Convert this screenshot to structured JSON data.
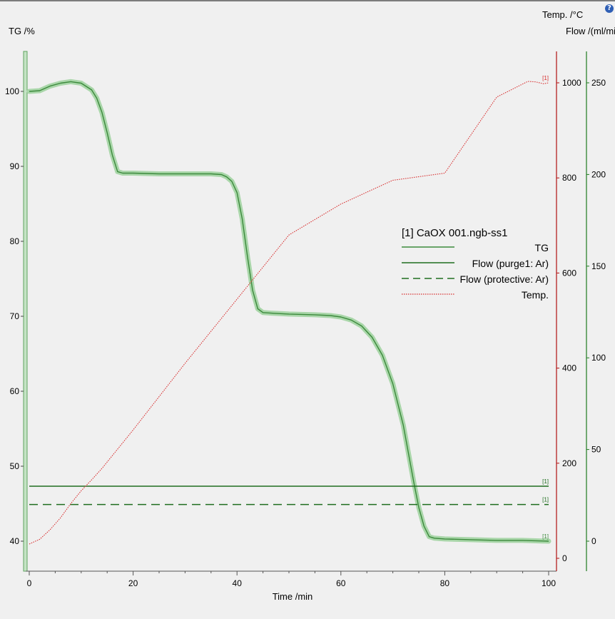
{
  "chart_data": {
    "type": "line",
    "title": "",
    "xlabel": "Time /min",
    "xlim": [
      0,
      101
    ],
    "x_ticks": [
      0,
      20,
      40,
      60,
      80,
      100
    ],
    "axes": {
      "tg": {
        "label": "TG /%",
        "lim": [
          36,
          106
        ],
        "ticks": [
          40,
          50,
          60,
          70,
          80,
          90,
          100
        ],
        "color": "#6aaa6a"
      },
      "temp": {
        "label": "Temp. /°C",
        "lim": [
          -20,
          1050
        ],
        "ticks": [
          0,
          200,
          400,
          600,
          800,
          1000
        ],
        "color": "#b01010"
      },
      "flow": {
        "label": "Flow /(ml/min)",
        "lim": [
          -15,
          265
        ],
        "ticks": [
          0,
          50,
          100,
          150,
          200,
          250
        ],
        "color": "#1f7a1f"
      }
    },
    "legend": {
      "header": "[1]  CaOX 001.ngb-ss1",
      "placement": "center-right",
      "entries": [
        "TG",
        "Flow (purge1: Ar)",
        "Flow (protective: Ar)",
        "Temp."
      ]
    },
    "series_tag": "[1]",
    "series": [
      {
        "name": "TG",
        "axis": "tg",
        "color": "#3c8a3c",
        "style": "solid-halo",
        "x": [
          0,
          2,
          4,
          6,
          8,
          10,
          12,
          13,
          14,
          15,
          16,
          17,
          18,
          20,
          25,
          30,
          35,
          37,
          38,
          39,
          40,
          41,
          42,
          43,
          44,
          45,
          47,
          50,
          55,
          58,
          60,
          62,
          64,
          66,
          68,
          70,
          72,
          74,
          75,
          76,
          77,
          78,
          80,
          85,
          90,
          95,
          100
        ],
        "y": [
          100,
          100.1,
          100.7,
          101.1,
          101.3,
          101.1,
          100.2,
          99.1,
          97.2,
          94.5,
          91.5,
          89.3,
          89.1,
          89.1,
          89.0,
          89.0,
          89.0,
          88.9,
          88.6,
          88.0,
          86.5,
          83.0,
          78.0,
          73.5,
          71.0,
          70.5,
          70.4,
          70.3,
          70.2,
          70.1,
          69.9,
          69.5,
          68.7,
          67.2,
          64.8,
          61.0,
          55.5,
          48.0,
          44.5,
          42.0,
          40.6,
          40.4,
          40.3,
          40.2,
          40.1,
          40.1,
          40.0
        ]
      },
      {
        "name": "Flow (purge1: Ar)",
        "axis": "flow",
        "color": "#1f6e1f",
        "style": "solid",
        "x": [
          0,
          100
        ],
        "y": [
          30,
          30
        ]
      },
      {
        "name": "Flow (protective: Ar)",
        "axis": "flow",
        "color": "#1f6e1f",
        "style": "dashed",
        "x": [
          0,
          100
        ],
        "y": [
          20,
          20
        ]
      },
      {
        "name": "Temp.",
        "axis": "temp",
        "color": "#d83030",
        "style": "dotted",
        "x": [
          0,
          2,
          4,
          6,
          8,
          10,
          12,
          14,
          20,
          30,
          40,
          50,
          60,
          70,
          80,
          90,
          96,
          97.5,
          99,
          100
        ],
        "y": [
          30,
          40,
          60,
          85,
          115,
          142,
          165,
          189,
          270,
          410,
          545,
          680,
          745,
          795,
          810,
          970,
          1003,
          1002,
          998,
          1000
        ]
      }
    ],
    "grid": false
  },
  "ui": {
    "help_label": "?"
  }
}
